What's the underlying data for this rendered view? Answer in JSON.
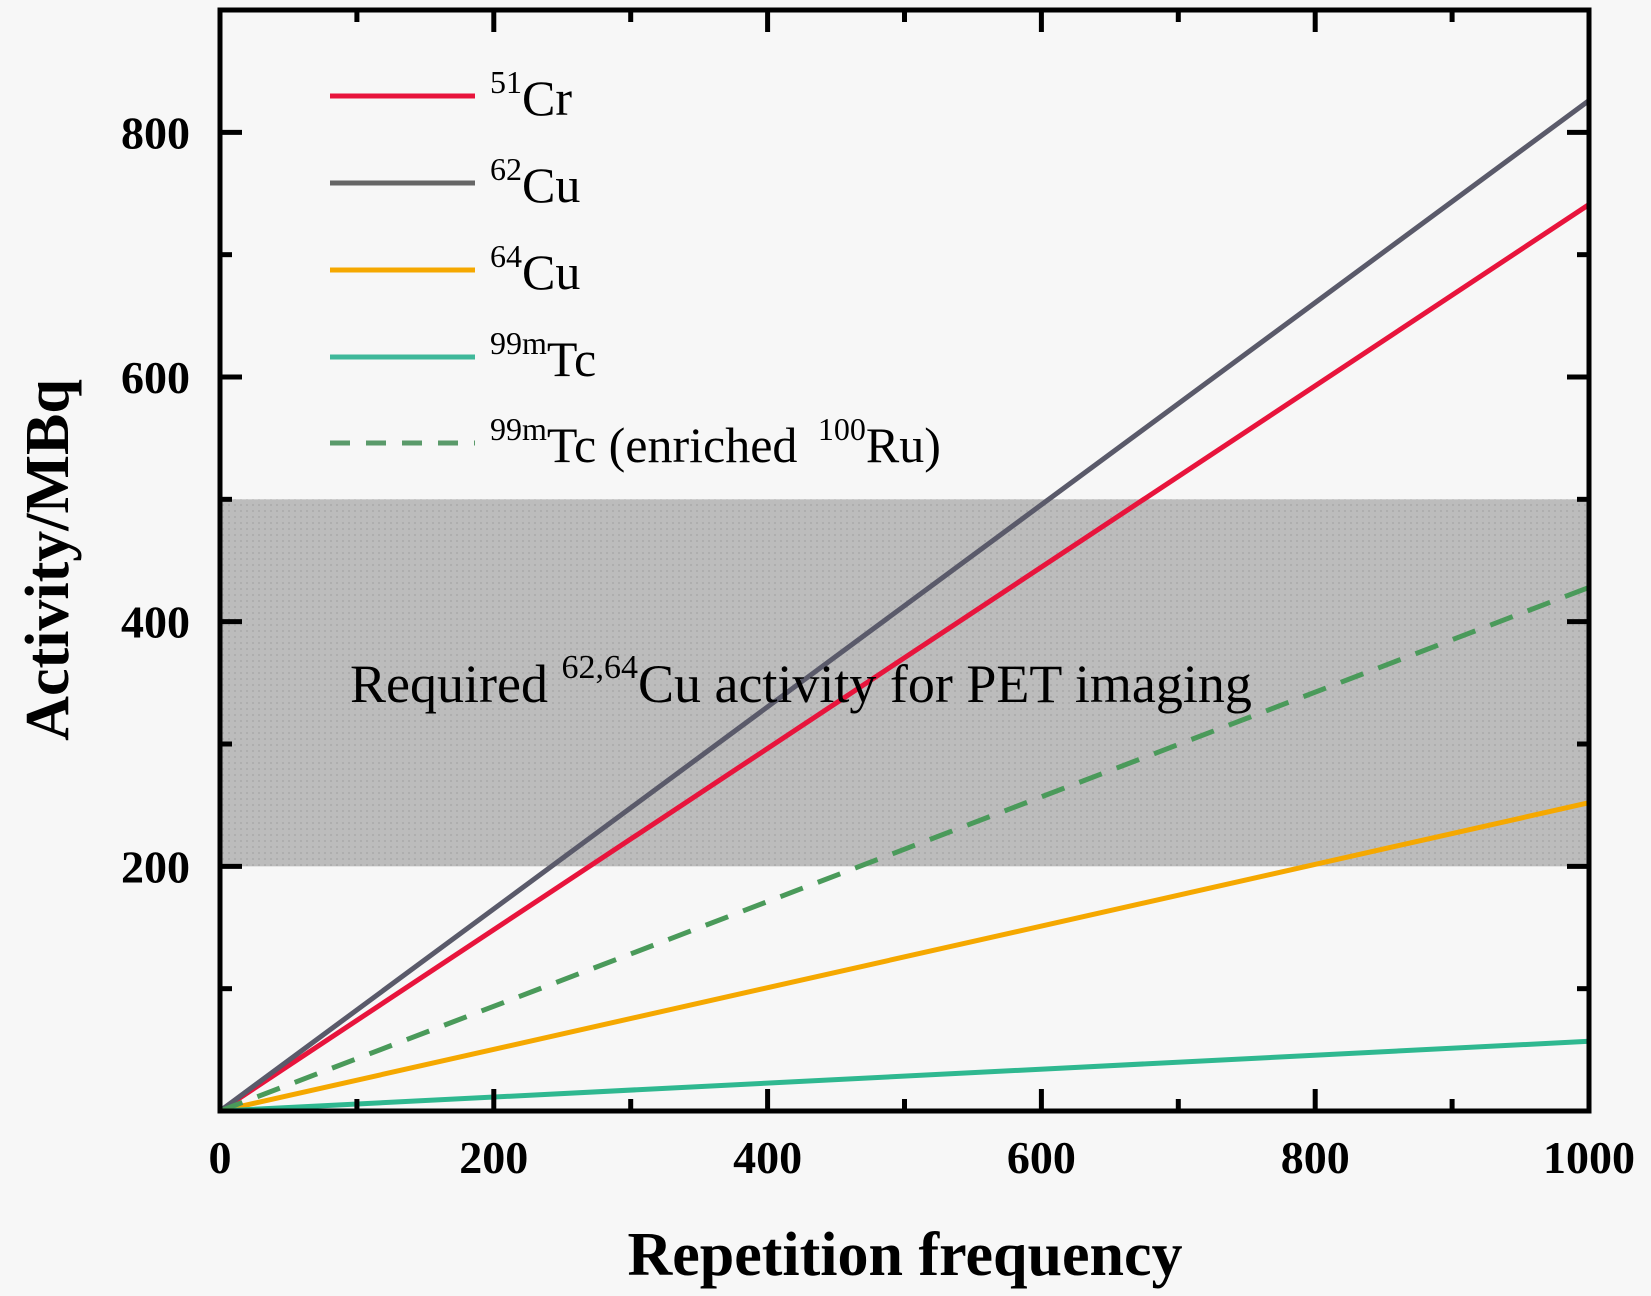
{
  "chart_data": {
    "type": "line",
    "title": "",
    "xlabel": "Repetition frequency",
    "ylabel": "Activity/MBq",
    "xlim": [
      0,
      1000
    ],
    "ylim": [
      0,
      900
    ],
    "grid": false,
    "legend_placement": "top-left",
    "x_ticks": [
      "0",
      "200",
      "400",
      "600",
      "800",
      "1000"
    ],
    "y_ticks": [
      "200",
      "400",
      "600",
      "800"
    ],
    "x_tick_values": [
      0,
      200,
      400,
      600,
      800,
      1000
    ],
    "y_tick_values": [
      200,
      400,
      600,
      800
    ],
    "x_minor_tick_values": [
      100,
      300,
      500,
      700,
      900
    ],
    "y_minor_tick_values": [
      100,
      300,
      500,
      700
    ],
    "series": [
      {
        "name": "51Cr",
        "mass": "51",
        "element": "Cr",
        "color": "#e8143c",
        "style": "solid",
        "x": [
          0,
          1000
        ],
        "y": [
          0,
          741
        ]
      },
      {
        "name": "62Cu",
        "mass": "62",
        "element": "Cu",
        "color": "#5a5a6a",
        "style": "solid",
        "x": [
          0,
          1000
        ],
        "y": [
          0,
          826
        ]
      },
      {
        "name": "64Cu",
        "mass": "64",
        "element": "Cu",
        "color": "#f5a800",
        "style": "solid",
        "x": [
          0,
          1000
        ],
        "y": [
          0,
          252
        ]
      },
      {
        "name": "99mTc",
        "mass": "99m",
        "element": "Tc",
        "color": "#2fb890",
        "style": "solid",
        "x": [
          0,
          1000
        ],
        "y": [
          0,
          57
        ]
      },
      {
        "name": "99mTc (enriched 100Ru)",
        "mass": "99m",
        "element": "Tc (enriched ",
        "suffix_mass": "100",
        "suffix_element": "Ru)",
        "color": "#4a9a5a",
        "style": "dashed",
        "x": [
          0,
          1000
        ],
        "y": [
          0,
          428
        ]
      }
    ],
    "shaded_band": {
      "y_range": [
        200,
        500
      ],
      "color": "#b9b9b9",
      "label_prefix": "Required ",
      "label_sup": "62,64",
      "label_suffix": "Cu activity for PET imaging"
    }
  }
}
